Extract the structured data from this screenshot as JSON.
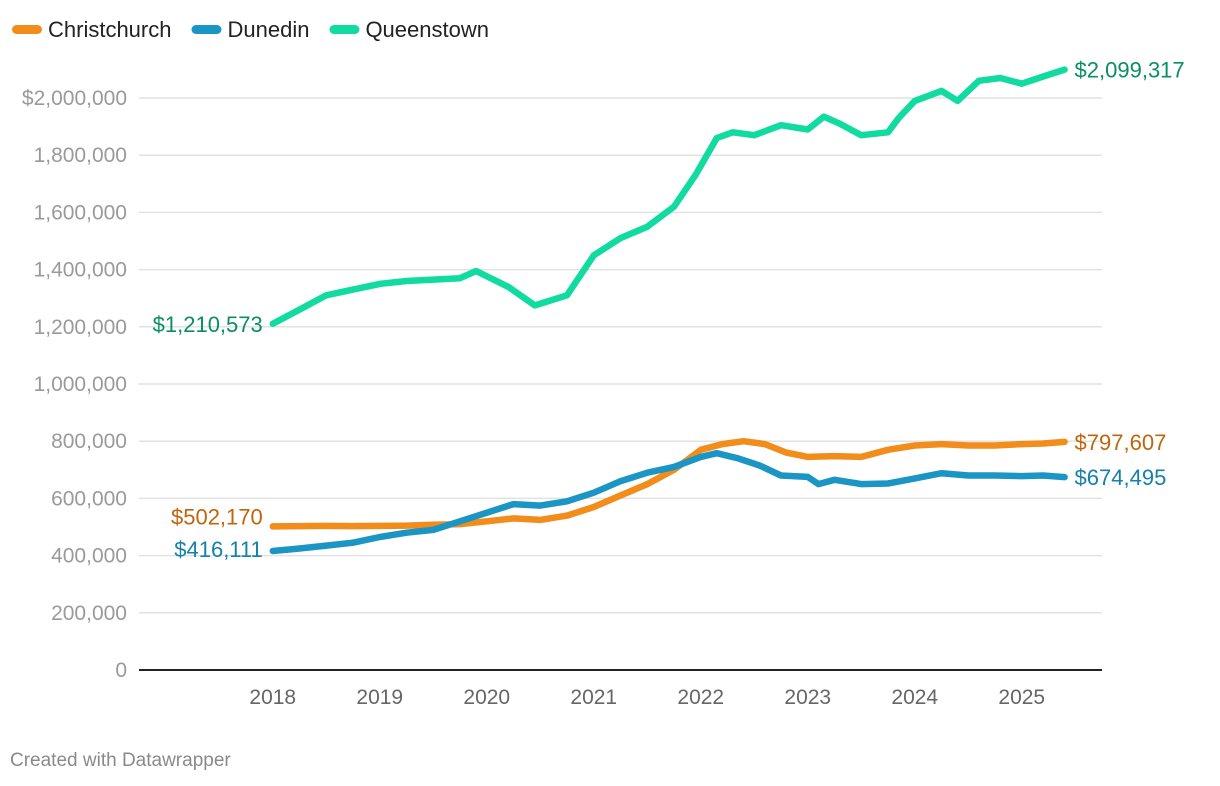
{
  "chart_data": {
    "type": "line",
    "title": "",
    "xlabel": "",
    "ylabel": "",
    "xlim": [
      2016.75,
      2025.75
    ],
    "ylim": [
      0,
      2000000
    ],
    "x_ticks": [
      2018,
      2019,
      2020,
      2021,
      2022,
      2023,
      2024,
      2025
    ],
    "x_tick_labels": [
      "2018",
      "2019",
      "2020",
      "2021",
      "2022",
      "2023",
      "2024",
      "2025"
    ],
    "y_ticks": [
      0,
      200000,
      400000,
      600000,
      800000,
      1000000,
      1200000,
      1400000,
      1600000,
      1800000,
      2000000
    ],
    "y_tick_labels": [
      "0",
      "200,000",
      "400,000",
      "600,000",
      "800,000",
      "1,000,000",
      "1,200,000",
      "1,400,000",
      "1,600,000",
      "1,800,000",
      "$2,000,000"
    ],
    "grid": true,
    "legend_position": "top-left",
    "credit": "Created with Datawrapper",
    "series": [
      {
        "name": "Christchurch",
        "color": "#f28c1a",
        "label_color": "#c0650c",
        "start_label": "$502,170",
        "end_label": "$797,607",
        "x": [
          2018.0,
          2018.25,
          2018.5,
          2018.75,
          2019.0,
          2019.25,
          2019.5,
          2019.75,
          2020.0,
          2020.25,
          2020.5,
          2020.75,
          2021.0,
          2021.25,
          2021.5,
          2021.75,
          2022.0,
          2022.2,
          2022.4,
          2022.6,
          2022.8,
          2023.0,
          2023.25,
          2023.5,
          2023.75,
          2024.0,
          2024.25,
          2024.5,
          2024.75,
          2025.0,
          2025.2,
          2025.4
        ],
        "values": [
          502170,
          503000,
          504000,
          503000,
          504000,
          505000,
          508000,
          510000,
          520000,
          530000,
          525000,
          540000,
          570000,
          610000,
          650000,
          700000,
          770000,
          790000,
          800000,
          790000,
          760000,
          745000,
          748000,
          745000,
          770000,
          785000,
          790000,
          785000,
          785000,
          790000,
          792000,
          797607
        ]
      },
      {
        "name": "Dunedin",
        "color": "#1b95c3",
        "label_color": "#1580a8",
        "start_label": "$416,111",
        "end_label": "$674,495",
        "x": [
          2018.0,
          2018.25,
          2018.5,
          2018.75,
          2019.0,
          2019.25,
          2019.5,
          2019.75,
          2020.0,
          2020.25,
          2020.5,
          2020.75,
          2021.0,
          2021.25,
          2021.5,
          2021.75,
          2022.0,
          2022.15,
          2022.35,
          2022.55,
          2022.75,
          2023.0,
          2023.1,
          2023.25,
          2023.5,
          2023.75,
          2024.0,
          2024.25,
          2024.5,
          2024.75,
          2025.0,
          2025.2,
          2025.4
        ],
        "values": [
          416111,
          425000,
          435000,
          445000,
          465000,
          480000,
          490000,
          520000,
          550000,
          580000,
          575000,
          590000,
          620000,
          660000,
          690000,
          710000,
          745000,
          758000,
          740000,
          715000,
          680000,
          675000,
          650000,
          665000,
          650000,
          652000,
          670000,
          688000,
          680000,
          680000,
          678000,
          680000,
          674495
        ]
      },
      {
        "name": "Queenstown",
        "color": "#11dba0",
        "label_color": "#0a8e63",
        "start_label": "$1,210,573",
        "end_label": "$2,099,317",
        "x": [
          2018.0,
          2018.25,
          2018.5,
          2018.75,
          2019.0,
          2019.25,
          2019.5,
          2019.75,
          2019.9,
          2020.2,
          2020.45,
          2020.75,
          2021.0,
          2021.25,
          2021.5,
          2021.75,
          2021.95,
          2022.15,
          2022.3,
          2022.5,
          2022.75,
          2023.0,
          2023.15,
          2023.3,
          2023.5,
          2023.75,
          2023.85,
          2024.0,
          2024.25,
          2024.4,
          2024.6,
          2024.8,
          2025.0,
          2025.2,
          2025.4
        ],
        "values": [
          1210573,
          1260000,
          1310000,
          1330000,
          1350000,
          1360000,
          1365000,
          1370000,
          1395000,
          1340000,
          1275000,
          1310000,
          1450000,
          1510000,
          1550000,
          1620000,
          1730000,
          1860000,
          1880000,
          1870000,
          1905000,
          1890000,
          1935000,
          1910000,
          1870000,
          1880000,
          1930000,
          1990000,
          2025000,
          1990000,
          2060000,
          2070000,
          2050000,
          2075000,
          2099317
        ]
      }
    ]
  }
}
